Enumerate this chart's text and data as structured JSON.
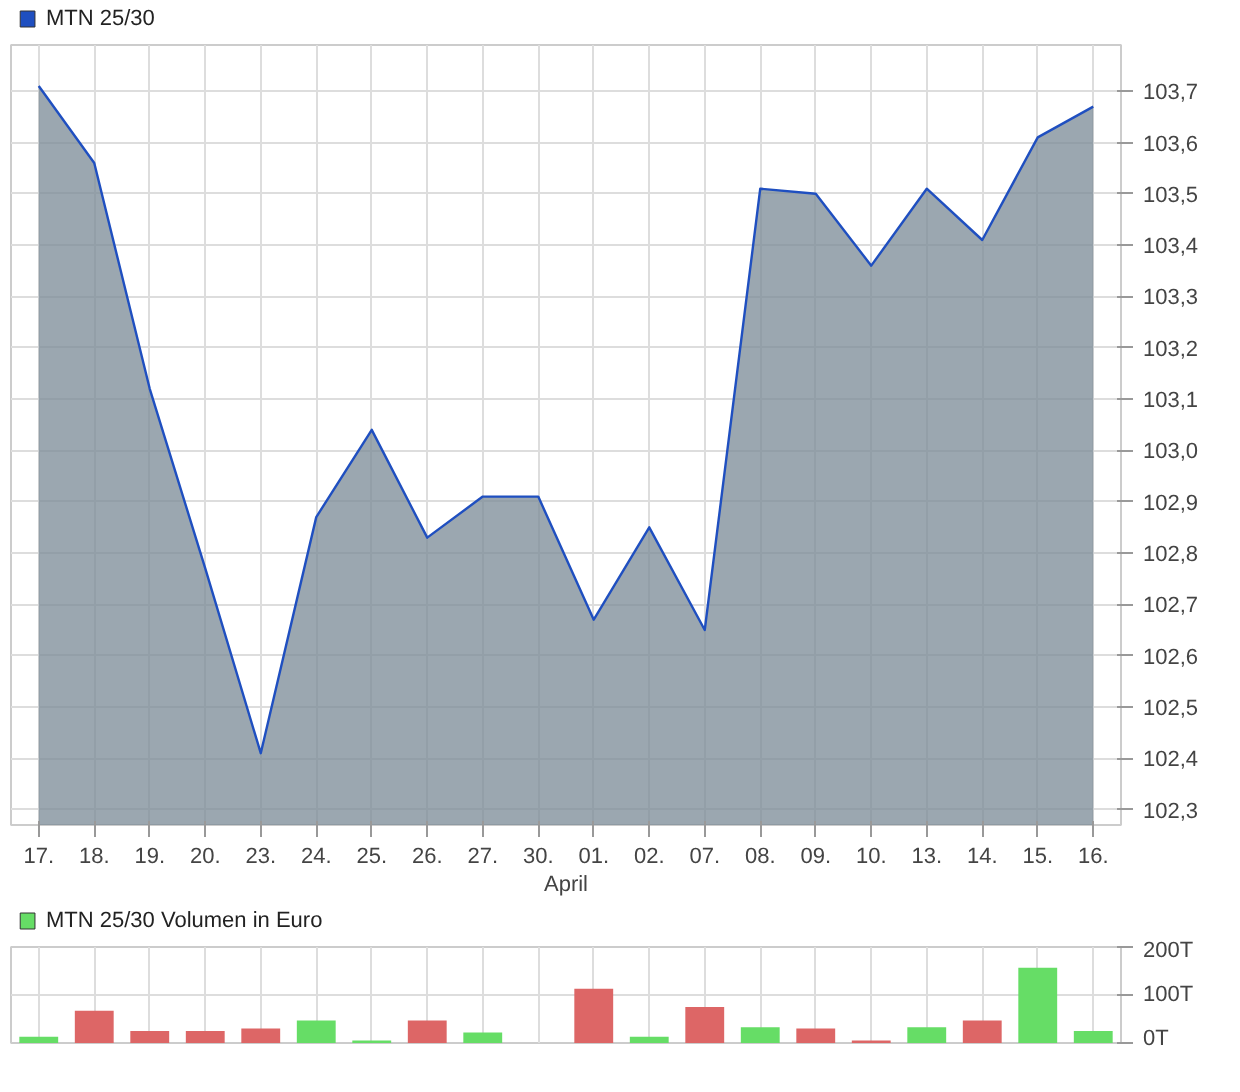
{
  "chart_data": [
    {
      "type": "area",
      "xlabel": "April",
      "categories": [
        "17.",
        "18.",
        "19.",
        "20.",
        "23.",
        "24.",
        "25.",
        "26.",
        "27.",
        "30.",
        "01.",
        "02.",
        "07.",
        "08.",
        "09.",
        "10.",
        "13.",
        "14.",
        "15.",
        "16."
      ],
      "series": [
        {
          "name": "MTN 25/30",
          "color": "#1f4fc0",
          "values": [
            103.71,
            103.56,
            103.12,
            102.77,
            102.41,
            102.87,
            103.04,
            102.83,
            102.91,
            102.91,
            102.67,
            102.85,
            102.65,
            103.51,
            103.5,
            103.36,
            103.51,
            103.41,
            103.61,
            103.67
          ]
        }
      ],
      "ylim": [
        102.27,
        103.79
      ],
      "yticks": [
        {
          "value": 102.3,
          "label": "102,3"
        },
        {
          "value": 102.4,
          "label": "102,4"
        },
        {
          "value": 102.5,
          "label": "102,5"
        },
        {
          "value": 102.6,
          "label": "102,6"
        },
        {
          "value": 102.7,
          "label": "102,7"
        },
        {
          "value": 102.8,
          "label": "102,8"
        },
        {
          "value": 102.9,
          "label": "102,9"
        },
        {
          "value": 103.0,
          "label": "103,0"
        },
        {
          "value": 103.1,
          "label": "103,1"
        },
        {
          "value": 103.2,
          "label": "103,2"
        },
        {
          "value": 103.3,
          "label": "103,3"
        },
        {
          "value": 103.4,
          "label": "103,4"
        },
        {
          "value": 103.5,
          "label": "103,5"
        },
        {
          "value": 103.6,
          "label": "103,6"
        },
        {
          "value": 103.7,
          "label": "103,7"
        }
      ],
      "grid": true,
      "legend": "top left"
    },
    {
      "type": "bar",
      "categories": [
        "17.",
        "18.",
        "19.",
        "20.",
        "23.",
        "24.",
        "25.",
        "26.",
        "27.",
        "30.",
        "01.",
        "02.",
        "07.",
        "08.",
        "09.",
        "10.",
        "13.",
        "14.",
        "15.",
        "16."
      ],
      "series": [
        {
          "name": "MTN 25/30 Volumen in Euro",
          "color": "#66dd66",
          "values": [
            13,
            67,
            25,
            25,
            30,
            47,
            5,
            47,
            22,
            null,
            113,
            13,
            75,
            33,
            30,
            5,
            33,
            47,
            157,
            25
          ],
          "colors": [
            "#66dd66",
            "#dd6666",
            "#dd6666",
            "#dd6666",
            "#dd6666",
            "#66dd66",
            "#66dd66",
            "#dd6666",
            "#66dd66",
            null,
            "#dd6666",
            "#66dd66",
            "#dd6666",
            "#66dd66",
            "#dd6666",
            "#dd6666",
            "#66dd66",
            "#dd6666",
            "#66dd66",
            "#66dd66"
          ]
        }
      ],
      "ylim": [
        0,
        200
      ],
      "yticks": [
        {
          "value": 0,
          "label": "0T"
        },
        {
          "value": 100,
          "label": "100T"
        },
        {
          "value": 200,
          "label": "200T"
        }
      ],
      "grid": true,
      "legend": "top left",
      "tick_labels": "y"
    }
  ]
}
